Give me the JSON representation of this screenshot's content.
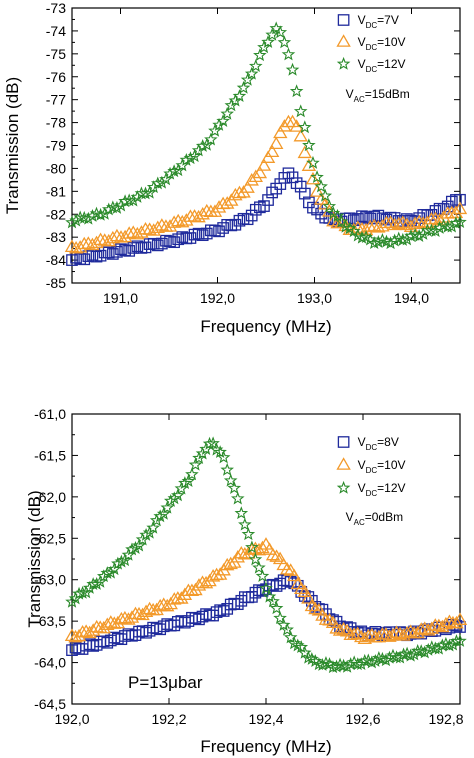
{
  "chart_data": [
    {
      "type": "scatter",
      "xlabel": "Frequency (MHz)",
      "ylabel": "Transmission (dB)",
      "xlim": [
        190.5,
        194.5
      ],
      "ylim": [
        -85,
        -73
      ],
      "xticks": [
        191.0,
        192.0,
        193.0,
        194.0
      ],
      "xtick_labels": [
        "191,0",
        "192,0",
        "193,0",
        "194,0"
      ],
      "yticks": [
        -85,
        -84,
        -83,
        -82,
        -81,
        -80,
        -79,
        -78,
        -77,
        -76,
        -75,
        -74,
        -73
      ],
      "ytick_labels": [
        "-85",
        "-84",
        "-83",
        "-82",
        "-81",
        "-80",
        "-79",
        "-78",
        "-77",
        "-76",
        "-75",
        "-74",
        "-73"
      ],
      "legend_position": "top-right",
      "annotation": {
        "main": "V",
        "sub": "AC",
        "rest": "=15dBm"
      },
      "series": [
        {
          "legend": {
            "main": "V",
            "sub": "DC",
            "rest": "=7V"
          },
          "marker": "square",
          "color": "#1f2a9c",
          "x": [
            190.5,
            191.0,
            191.5,
            192.0,
            192.3,
            192.5,
            192.65,
            192.75,
            192.85,
            193.0,
            193.2,
            193.4,
            193.6,
            193.8,
            194.0,
            194.3,
            194.5
          ],
          "y": [
            -84.0,
            -83.6,
            -83.2,
            -82.7,
            -82.2,
            -81.5,
            -80.6,
            -80.2,
            -80.8,
            -81.8,
            -82.3,
            -82.2,
            -82.1,
            -82.2,
            -82.3,
            -81.8,
            -81.3
          ]
        },
        {
          "legend": {
            "main": "V",
            "sub": "DC",
            "rest": "=10V"
          },
          "marker": "triangle",
          "color": "#f39a2b",
          "x": [
            190.5,
            191.0,
            191.5,
            192.0,
            192.3,
            192.5,
            192.65,
            192.75,
            192.85,
            193.0,
            193.2,
            193.4,
            193.6,
            193.8,
            194.0,
            194.3,
            194.5
          ],
          "y": [
            -83.5,
            -83.0,
            -82.5,
            -81.8,
            -80.9,
            -79.8,
            -78.5,
            -77.8,
            -78.5,
            -80.8,
            -82.3,
            -82.7,
            -82.6,
            -82.4,
            -82.5,
            -82.2,
            -81.8
          ]
        },
        {
          "legend": {
            "main": "V",
            "sub": "DC",
            "rest": "=12V"
          },
          "marker": "star",
          "color": "#2a8a2a",
          "x": [
            190.5,
            190.8,
            191.0,
            191.3,
            191.6,
            191.9,
            192.1,
            192.3,
            192.45,
            192.55,
            192.62,
            192.68,
            192.75,
            192.85,
            192.95,
            193.05,
            193.2,
            193.4,
            193.6,
            193.8,
            194.0,
            194.3,
            194.5
          ],
          "y": [
            -82.3,
            -82.0,
            -81.6,
            -81.0,
            -80.0,
            -78.9,
            -77.6,
            -76.3,
            -75.0,
            -74.2,
            -73.9,
            -74.3,
            -75.3,
            -77.3,
            -79.2,
            -80.7,
            -82.0,
            -82.8,
            -83.2,
            -83.2,
            -83.0,
            -82.6,
            -82.4
          ]
        }
      ]
    },
    {
      "type": "scatter",
      "xlabel": "Frequency (MHz)",
      "ylabel": "Transmission (dB)",
      "xlim": [
        192.0,
        192.8
      ],
      "ylim": [
        -64.5,
        -61.0
      ],
      "xticks": [
        192.0,
        192.2,
        192.4,
        192.6,
        192.8
      ],
      "xtick_labels": [
        "192,0",
        "192,2",
        "192,4",
        "192,6",
        "192,8"
      ],
      "yticks": [
        -64.5,
        -64.0,
        -63.5,
        -63.0,
        -62.5,
        -62.0,
        -61.5,
        -61.0
      ],
      "ytick_labels": [
        "-64,5",
        "-64,0",
        "-63,5",
        "-63,0",
        "-62,5",
        "-62,0",
        "-61,5",
        "-61,0"
      ],
      "legend_position": "top-right",
      "annotation": {
        "main": "V",
        "sub": "AC",
        "rest": "=0dBm"
      },
      "text_annotation": "P=13μbar",
      "series": [
        {
          "legend": {
            "main": "V",
            "sub": "DC",
            "rest": "=8V"
          },
          "marker": "square",
          "color": "#1f2a9c",
          "x": [
            192.0,
            192.1,
            192.2,
            192.3,
            192.35,
            192.4,
            192.45,
            192.5,
            192.55,
            192.6,
            192.7,
            192.8
          ],
          "y": [
            -63.85,
            -63.7,
            -63.55,
            -63.4,
            -63.25,
            -63.1,
            -63.0,
            -63.3,
            -63.55,
            -63.65,
            -63.65,
            -63.55
          ]
        },
        {
          "legend": {
            "main": "V",
            "sub": "DC",
            "rest": "=10V"
          },
          "marker": "triangle",
          "color": "#f39a2b",
          "x": [
            192.0,
            192.1,
            192.2,
            192.3,
            192.35,
            192.4,
            192.45,
            192.5,
            192.55,
            192.6,
            192.7,
            192.8
          ],
          "y": [
            -63.7,
            -63.5,
            -63.3,
            -62.95,
            -62.7,
            -62.6,
            -62.9,
            -63.35,
            -63.6,
            -63.7,
            -63.65,
            -63.5
          ]
        },
        {
          "legend": {
            "main": "V",
            "sub": "DC",
            "rest": "=12V"
          },
          "marker": "star",
          "color": "#2a8a2a",
          "x": [
            192.0,
            192.05,
            192.1,
            192.15,
            192.2,
            192.24,
            192.27,
            192.29,
            192.31,
            192.34,
            192.37,
            192.4,
            192.45,
            192.5,
            192.55,
            192.6,
            192.7,
            192.8
          ],
          "y": [
            -63.25,
            -63.05,
            -62.8,
            -62.5,
            -62.1,
            -61.8,
            -61.45,
            -61.35,
            -61.5,
            -62.0,
            -62.6,
            -63.1,
            -63.7,
            -64.0,
            -64.05,
            -64.0,
            -63.9,
            -63.75
          ]
        }
      ]
    }
  ]
}
